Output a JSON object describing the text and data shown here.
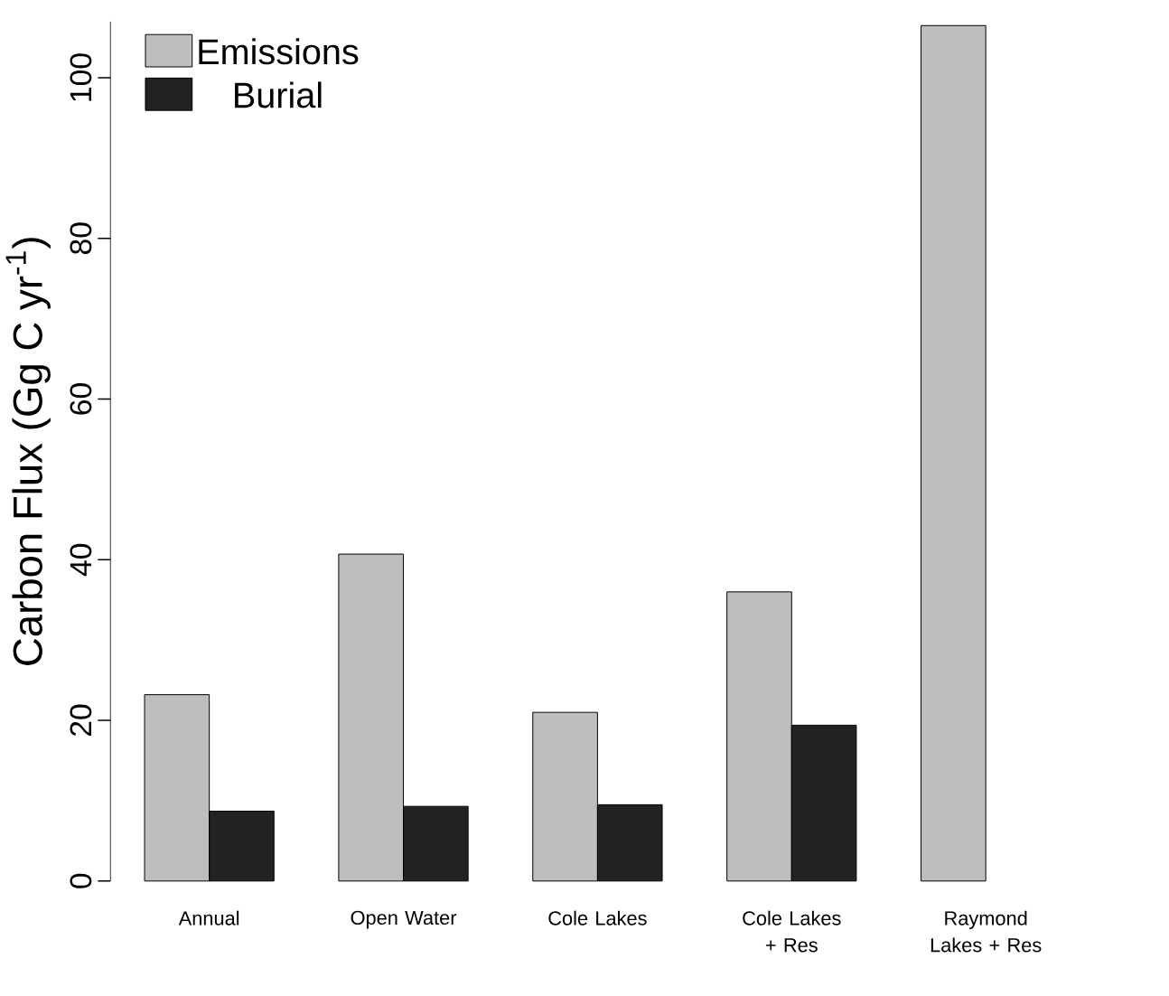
{
  "chart_data": {
    "type": "bar",
    "ylabel": "Carbon Flux (Gg C yr$^{-1}$)",
    "categories": [
      "Annual",
      "Open Water",
      "Cole Lakes",
      "Cole Lakes + Res",
      "Raymond Lakes + Res"
    ],
    "series": [
      {
        "name": "Emissions",
        "color": "#bebebe",
        "values": [
          23.2,
          40.7,
          21.0,
          36.0,
          106.5
        ]
      },
      {
        "name": "Burial",
        "color": "#222222",
        "values": [
          8.7,
          9.3,
          9.5,
          19.4,
          null
        ]
      }
    ],
    "ylim": [
      0,
      107
    ],
    "yticks": [
      0,
      20,
      40,
      60,
      80,
      100
    ],
    "grid": false,
    "legend": "top left"
  }
}
